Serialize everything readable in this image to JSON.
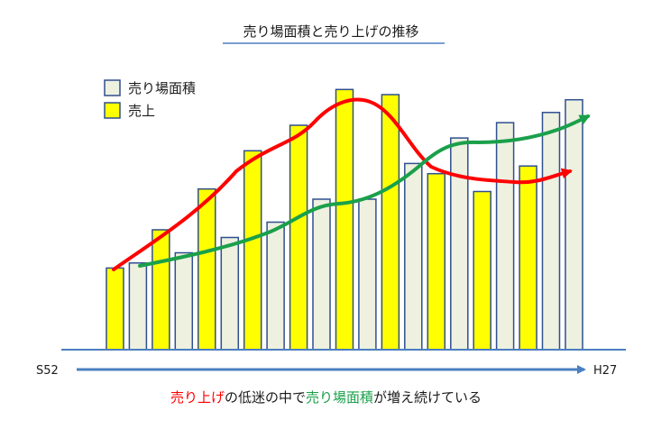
{
  "chart_data": {
    "type": "bar",
    "title": "売り場面積と売り上げの推移",
    "x_start_label": "S52",
    "x_end_label": "H27",
    "ylim": [
      0,
      100
    ],
    "grid": false,
    "legend_position": "top-left",
    "series": [
      {
        "name": "売り場面積",
        "color": "#eef0e0",
        "values": [
          null,
          34,
          null,
          38,
          null,
          44,
          null,
          50,
          null,
          59,
          null,
          59,
          null,
          73,
          null,
          83,
          null,
          89,
          null,
          93,
          98
        ]
      },
      {
        "name": "売上",
        "color": "#ffff00",
        "values": [
          32,
          null,
          47,
          null,
          63,
          null,
          78,
          null,
          88,
          null,
          102,
          null,
          100,
          null,
          69,
          null,
          62,
          null,
          72,
          null,
          null
        ]
      }
    ],
    "trend_lines": [
      {
        "series": "売上",
        "color": "#ff0000"
      },
      {
        "series": "売り場面積",
        "color": "#1aa04a"
      }
    ]
  },
  "caption": {
    "part1": "売り上げ",
    "part2": "の低迷の中で",
    "part3": "売り場面積",
    "part4": "が増え続けている"
  },
  "colors": {
    "bar_outline": "#2f4f8f",
    "axis": "#4a7fc0",
    "title_underline": "#4a7fc0"
  }
}
